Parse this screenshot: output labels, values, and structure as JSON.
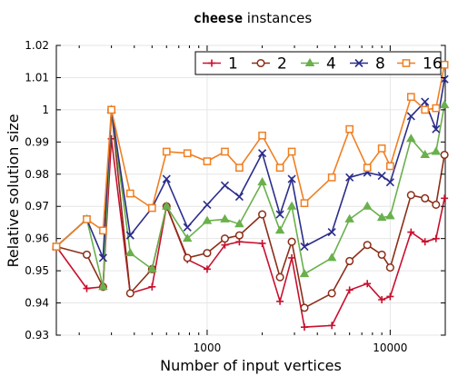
{
  "chart_data": {
    "type": "line",
    "title_code": "cheese",
    "title_rest": " instances",
    "xlabel": "Number of input vertices",
    "ylabel": "Relative solution size",
    "xscale": "log",
    "xlim": [
      150,
      20000
    ],
    "ylim": [
      0.93,
      1.02
    ],
    "xticks": [
      1000,
      10000
    ],
    "xtick_labels": [
      "1000",
      "10000"
    ],
    "yticks": [
      0.93,
      0.94,
      0.95,
      0.96,
      0.97,
      0.98,
      0.99,
      1.0,
      1.01,
      1.02
    ],
    "ytick_labels": [
      "0.93",
      "0.94",
      "0.95",
      "0.96",
      "0.97",
      "0.98",
      "0.99",
      "1",
      "1.01",
      "1.02"
    ],
    "legend_position": "top-right",
    "x": [
      150,
      220,
      270,
      300,
      380,
      500,
      600,
      780,
      1000,
      1250,
      1500,
      2000,
      2500,
      2900,
      3400,
      4800,
      6000,
      7500,
      9000,
      10000,
      13000,
      15500,
      17800,
      19800
    ],
    "series": [
      {
        "name": "1",
        "color": "#c8102e",
        "marker": "plus",
        "values": [
          0.9575,
          0.9445,
          0.945,
          0.991,
          0.943,
          0.945,
          0.97,
          0.9535,
          0.9505,
          0.958,
          0.959,
          0.9585,
          0.9405,
          0.954,
          0.9325,
          0.933,
          0.944,
          0.946,
          0.941,
          0.942,
          0.962,
          0.959,
          0.96,
          0.9725
        ]
      },
      {
        "name": "2",
        "color": "#8b2e18",
        "marker": "circle",
        "values": [
          0.9575,
          0.955,
          0.945,
          1.0,
          0.943,
          0.9505,
          0.97,
          0.954,
          0.9555,
          0.96,
          0.961,
          0.9675,
          0.948,
          0.959,
          0.9385,
          0.943,
          0.953,
          0.958,
          0.955,
          0.951,
          0.9735,
          0.9725,
          0.9705,
          0.986
        ]
      },
      {
        "name": "4",
        "color": "#6ab04c",
        "marker": "triangle",
        "values": [
          0.9575,
          0.966,
          0.945,
          1.0,
          0.9555,
          0.9505,
          0.97,
          0.96,
          0.9655,
          0.966,
          0.9645,
          0.9775,
          0.9625,
          0.97,
          0.949,
          0.954,
          0.966,
          0.97,
          0.9665,
          0.967,
          0.991,
          0.986,
          0.987,
          1.0015
        ]
      },
      {
        "name": "8",
        "color": "#2b2d8a",
        "marker": "x",
        "values": [
          0.9575,
          0.966,
          0.954,
          1.0,
          0.961,
          0.9695,
          0.9785,
          0.9635,
          0.9705,
          0.9765,
          0.973,
          0.9865,
          0.9675,
          0.9785,
          0.9575,
          0.962,
          0.979,
          0.9805,
          0.9795,
          0.9775,
          0.998,
          1.0025,
          0.994,
          1.0095
        ]
      },
      {
        "name": "16",
        "color": "#f07f22",
        "marker": "square",
        "values": [
          0.9575,
          0.966,
          0.9625,
          1.0,
          0.974,
          0.9695,
          0.987,
          0.9865,
          0.984,
          0.987,
          0.982,
          0.992,
          0.982,
          0.987,
          0.971,
          0.979,
          0.994,
          0.982,
          0.988,
          0.9825,
          1.004,
          1.0,
          1.0005,
          1.014
        ]
      }
    ]
  }
}
